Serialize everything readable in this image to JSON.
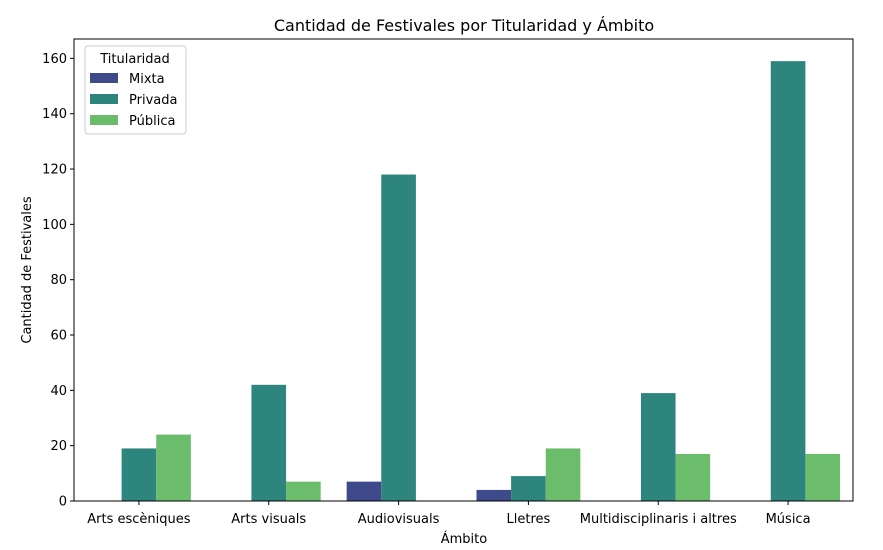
{
  "chart_data": {
    "type": "bar",
    "title": "Cantidad de Festivales por Titularidad y Ámbito",
    "xlabel": "Ámbito",
    "ylabel": "Cantidad de Festivales",
    "ylim": [
      0,
      167
    ],
    "yticks": [
      0,
      20,
      40,
      60,
      80,
      100,
      120,
      140,
      160
    ],
    "grid": false,
    "legend_title": "Titularidad",
    "legend_position": "top-left",
    "categories": [
      "Arts escèniques",
      "Arts visuals",
      "Audiovisuals",
      "Lletres",
      "Multidisciplinaris i altres",
      "Música"
    ],
    "series": [
      {
        "name": "Mixta",
        "color": "#3e4a89",
        "values": [
          0,
          0,
          7,
          4,
          0,
          0
        ]
      },
      {
        "name": "Privada",
        "color": "#2d857d",
        "values": [
          19,
          42,
          118,
          9,
          39,
          159
        ]
      },
      {
        "name": "Pública",
        "color": "#6bbd6c",
        "values": [
          24,
          7,
          0,
          19,
          17,
          17
        ]
      }
    ]
  }
}
